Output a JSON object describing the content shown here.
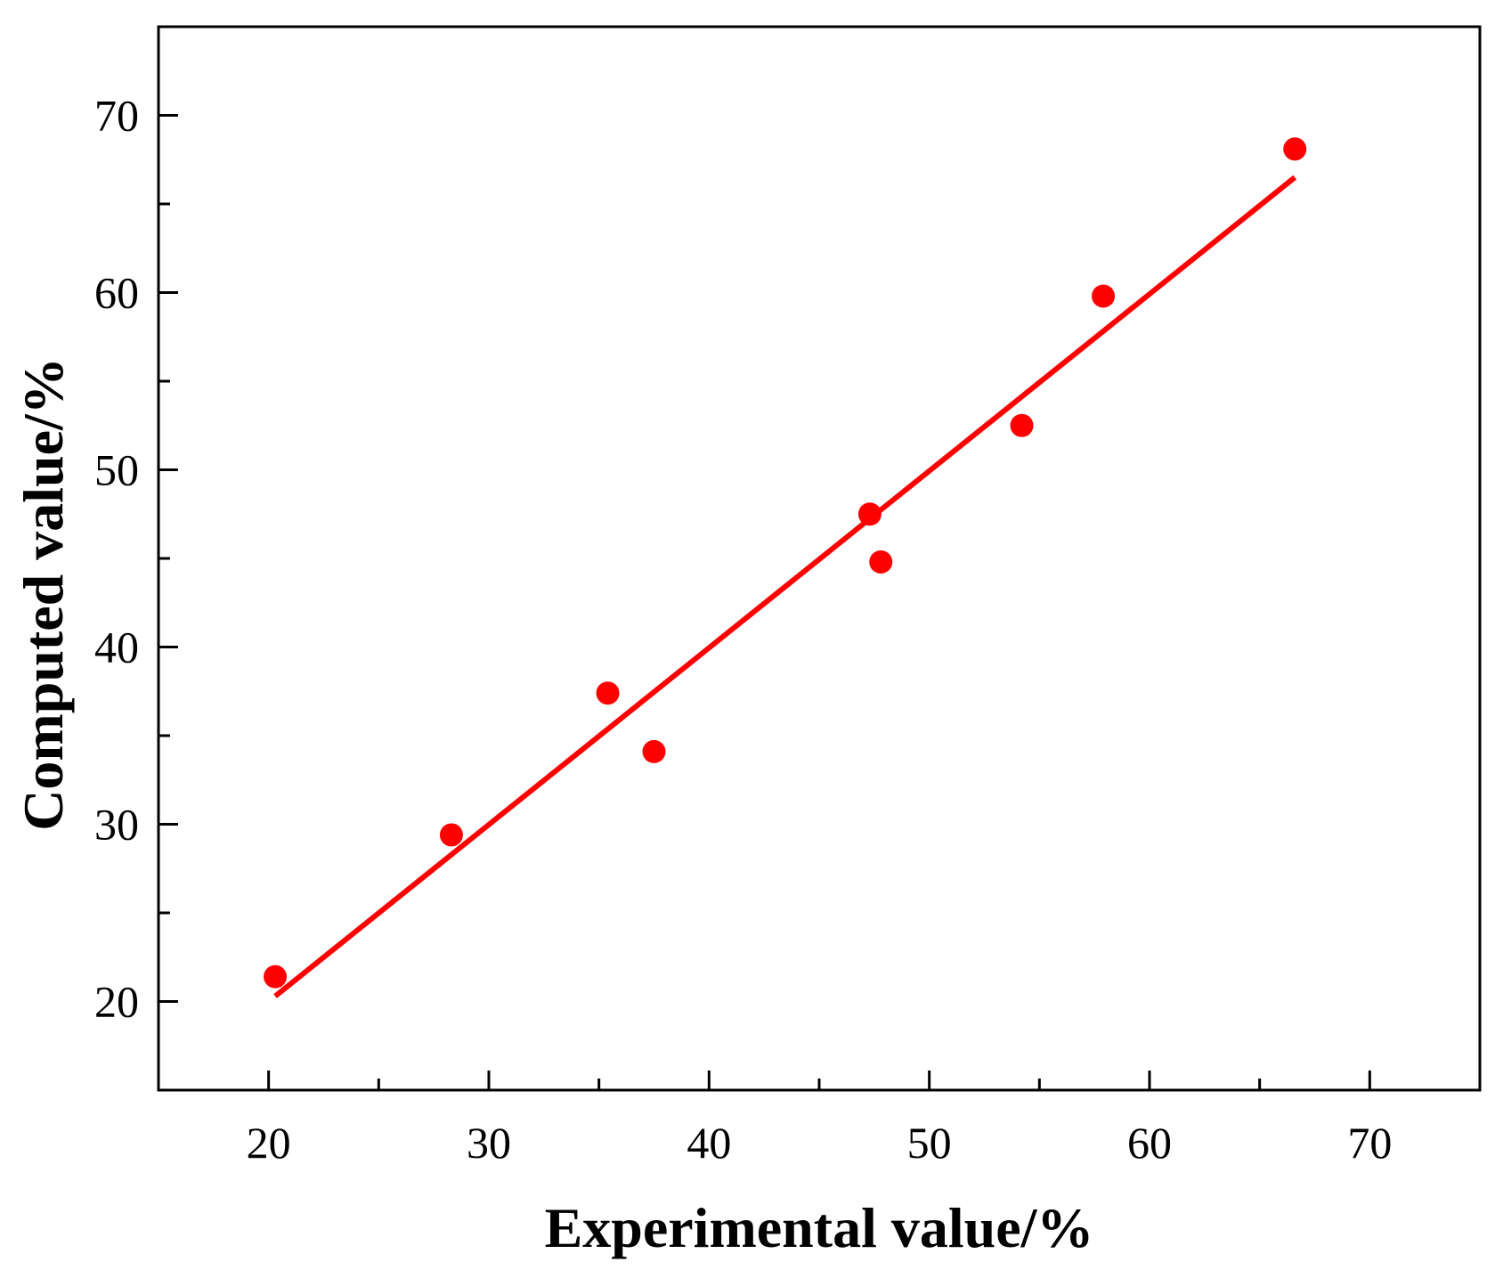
{
  "chart_data": {
    "type": "scatter",
    "title": "",
    "xlabel": "Experimental value/%",
    "ylabel": "Computed value/%",
    "xlim": [
      15,
      75
    ],
    "ylim": [
      15,
      75
    ],
    "x_ticks": [
      20,
      30,
      40,
      50,
      60,
      70
    ],
    "y_ticks": [
      20,
      30,
      40,
      50,
      60,
      70
    ],
    "x_minor_ticks": [
      25,
      35,
      45,
      55,
      65
    ],
    "y_minor_ticks": [
      25,
      35,
      45,
      55,
      65
    ],
    "grid": false,
    "legend": "none",
    "series": [
      {
        "type": "scatter",
        "color": "#ff0000",
        "points": [
          {
            "x": 20.3,
            "y": 21.4
          },
          {
            "x": 28.3,
            "y": 29.4
          },
          {
            "x": 35.4,
            "y": 37.4
          },
          {
            "x": 37.5,
            "y": 34.1
          },
          {
            "x": 47.3,
            "y": 47.5
          },
          {
            "x": 47.8,
            "y": 44.8
          },
          {
            "x": 54.2,
            "y": 52.5
          },
          {
            "x": 57.9,
            "y": 59.8
          },
          {
            "x": 66.6,
            "y": 68.1
          }
        ]
      },
      {
        "type": "line",
        "color": "#ff0000",
        "points": [
          {
            "x": 20.3,
            "y": 20.3
          },
          {
            "x": 66.6,
            "y": 66.5
          }
        ]
      }
    ]
  }
}
